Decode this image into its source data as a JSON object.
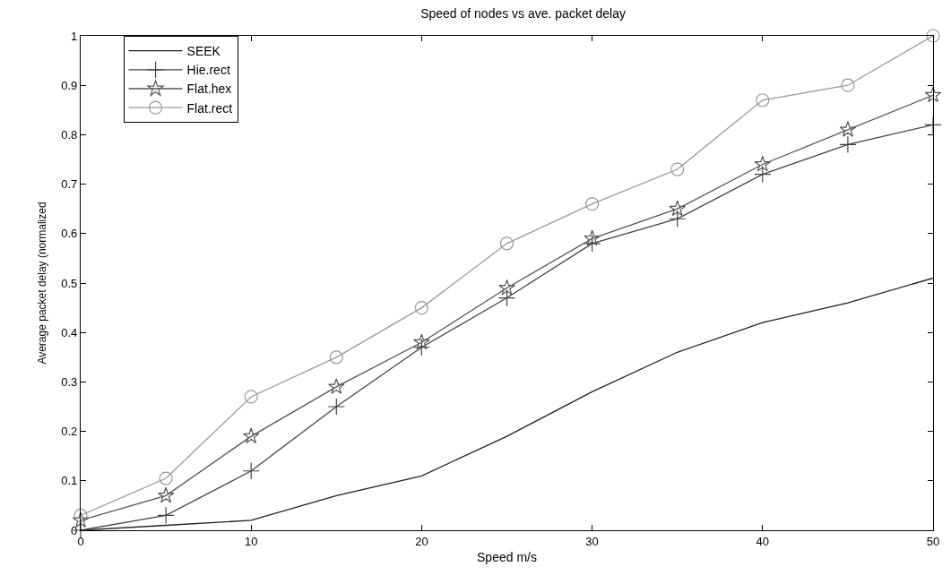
{
  "chart_data": {
    "type": "line",
    "title": "Speed of nodes vs ave. packet delay",
    "xlabel": "Speed m/s",
    "ylabel": "Average packet delay (normalized",
    "x": [
      0,
      5,
      10,
      15,
      20,
      25,
      30,
      35,
      40,
      45,
      50
    ],
    "series": [
      {
        "name": "SEEK",
        "color": "#222222",
        "marker": "none",
        "values": [
          0,
          0.01,
          0.02,
          0.07,
          0.11,
          0.19,
          0.28,
          0.36,
          0.42,
          0.46,
          0.51
        ]
      },
      {
        "name": "Hie.rect",
        "color": "#444444",
        "marker": "cross",
        "values": [
          0,
          0.03,
          0.12,
          0.25,
          0.37,
          0.47,
          0.58,
          0.63,
          0.72,
          0.78,
          0.82
        ]
      },
      {
        "name": "Flat.hex",
        "color": "#555555",
        "marker": "star",
        "values": [
          0.02,
          0.07,
          0.19,
          0.29,
          0.38,
          0.49,
          0.59,
          0.65,
          0.74,
          0.81,
          0.88
        ]
      },
      {
        "name": "Flat.rect",
        "color": "#999999",
        "marker": "circle",
        "values": [
          0.03,
          0.105,
          0.27,
          0.35,
          0.45,
          0.58,
          0.66,
          0.73,
          0.87,
          0.9,
          1.0
        ]
      }
    ],
    "xlim": [
      0,
      50
    ],
    "xticks": [
      0,
      10,
      20,
      30,
      40,
      50
    ],
    "ylim": [
      0,
      1
    ],
    "yticks": [
      0,
      0.1,
      0.2,
      0.3,
      0.4,
      0.5,
      0.6,
      0.7,
      0.8,
      0.9,
      1
    ],
    "legend": "top left"
  }
}
